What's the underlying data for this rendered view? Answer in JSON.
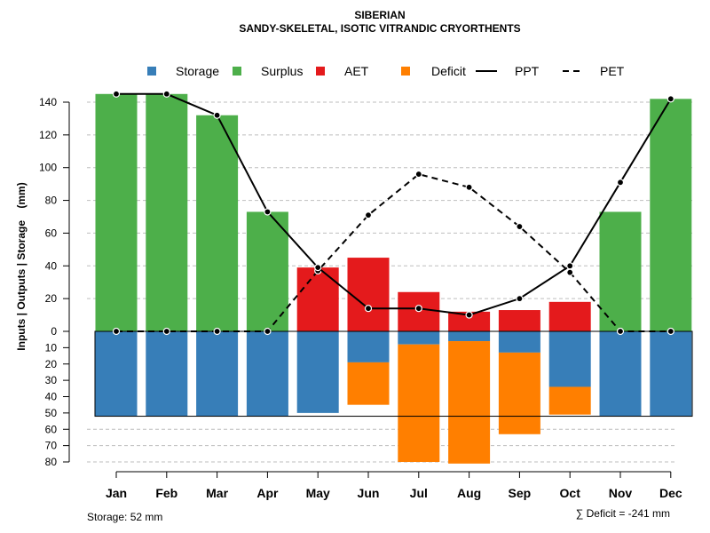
{
  "chart_data": {
    "type": "bar",
    "title": "SIBERIAN",
    "subtitle": "SANDY-SKELETAL, ISOTIC VITRANDIC CRYORTHENTS",
    "ylabel": "Inputs | Outputs | Storage    (mm)",
    "categories": [
      "Jan",
      "Feb",
      "Mar",
      "Apr",
      "May",
      "Jun",
      "Jul",
      "Aug",
      "Sep",
      "Oct",
      "Nov",
      "Dec"
    ],
    "upper_ticks": [
      "0",
      "20",
      "40",
      "60",
      "80",
      "100",
      "120",
      "140"
    ],
    "lower_ticks": [
      "10",
      "20",
      "30",
      "40",
      "50",
      "60",
      "70",
      "80"
    ],
    "ylim_upper": [
      0,
      150
    ],
    "ylim_lower": [
      0,
      80
    ],
    "legend": [
      {
        "key": "storage",
        "label": "Storage",
        "color": "#377EB8",
        "kind": "square"
      },
      {
        "key": "surplus",
        "label": "Surplus",
        "color": "#4DAF4A",
        "kind": "square"
      },
      {
        "key": "aet",
        "label": "AET",
        "color": "#E41A1C",
        "kind": "square"
      },
      {
        "key": "deficit",
        "label": "Deficit",
        "color": "#FF7F00",
        "kind": "square"
      },
      {
        "key": "ppt",
        "label": "PPT",
        "color": "#000000",
        "kind": "solid"
      },
      {
        "key": "pet",
        "label": "PET",
        "color": "#000000",
        "kind": "dashed"
      }
    ],
    "series": [
      {
        "name": "Surplus",
        "color": "#4DAF4A",
        "values": [
          145,
          145,
          132,
          73,
          0,
          0,
          0,
          0,
          0,
          0,
          73,
          142
        ]
      },
      {
        "name": "AET",
        "color": "#E41A1C",
        "values": [
          0,
          0,
          0,
          0,
          39,
          45,
          24,
          12,
          13,
          18,
          0,
          0
        ]
      },
      {
        "name": "Storage",
        "color": "#377EB8",
        "values": [
          52,
          52,
          52,
          52,
          50,
          19,
          8,
          6,
          13,
          34,
          52,
          52
        ]
      },
      {
        "name": "Deficit",
        "color": "#FF7F00",
        "values": [
          0,
          0,
          0,
          0,
          0,
          26,
          72,
          75,
          50,
          17,
          0,
          0
        ]
      },
      {
        "name": "PPT",
        "color": "#000000",
        "values": [
          145,
          145,
          132,
          73,
          39,
          14,
          14,
          10,
          20,
          40,
          91,
          142
        ]
      },
      {
        "name": "PET",
        "color": "#000000",
        "values": [
          0,
          0,
          0,
          0,
          37,
          71,
          96,
          88,
          64,
          36,
          0,
          0
        ]
      }
    ],
    "storage_capacity": 52,
    "footer_left": "Storage: 52 mm",
    "footer_right": "∑ Deficit = -241 mm"
  }
}
